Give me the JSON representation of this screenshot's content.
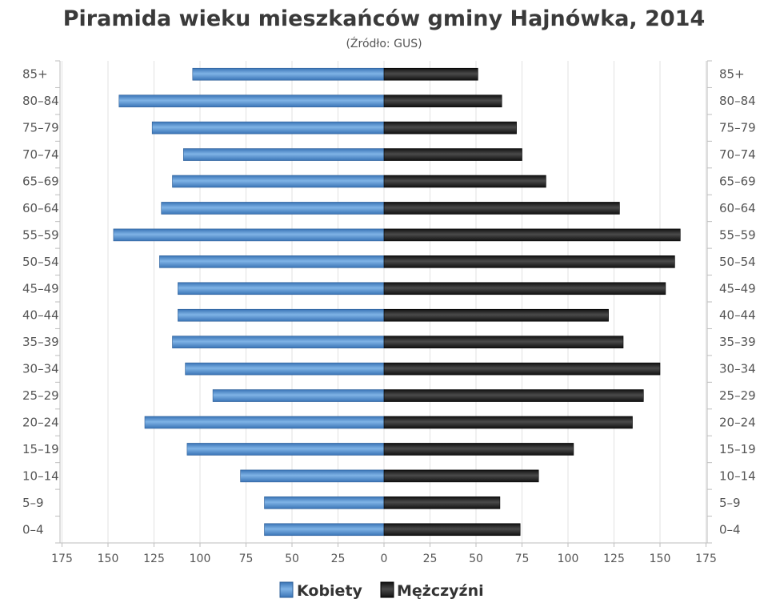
{
  "chart_data": {
    "type": "bar",
    "orientation": "horizontal",
    "layout": "population-pyramid",
    "title": "Piramida wieku mieszkańców gminy Hajnówka, 2014",
    "subtitle": "(Źródło: GUS)",
    "categories": [
      "0–4",
      "5–9",
      "10–14",
      "15–19",
      "20–24",
      "25–29",
      "30–34",
      "35–39",
      "40–44",
      "45–49",
      "50–54",
      "55–59",
      "60–64",
      "65–69",
      "70–74",
      "75–79",
      "80–84",
      "85+"
    ],
    "series": [
      {
        "name": "Kobiety",
        "side": "left",
        "color": "#4a86c8",
        "values": [
          65,
          65,
          78,
          107,
          130,
          93,
          108,
          115,
          112,
          112,
          122,
          147,
          121,
          115,
          109,
          126,
          144,
          104
        ]
      },
      {
        "name": "Mężczyźni",
        "side": "right",
        "color": "#111111",
        "values": [
          74,
          63,
          84,
          103,
          135,
          141,
          150,
          130,
          122,
          153,
          158,
          161,
          128,
          88,
          75,
          72,
          64,
          51
        ]
      }
    ],
    "x_ticks_left": [
      "175",
      "150",
      "125",
      "100",
      "75",
      "50",
      "25"
    ],
    "x_ticks_center": "0",
    "x_ticks_right": [
      "25",
      "50",
      "75",
      "100",
      "125",
      "150",
      "175"
    ],
    "xlim": [
      -175,
      175
    ],
    "grid": true,
    "legend_position": "bottom-center"
  }
}
